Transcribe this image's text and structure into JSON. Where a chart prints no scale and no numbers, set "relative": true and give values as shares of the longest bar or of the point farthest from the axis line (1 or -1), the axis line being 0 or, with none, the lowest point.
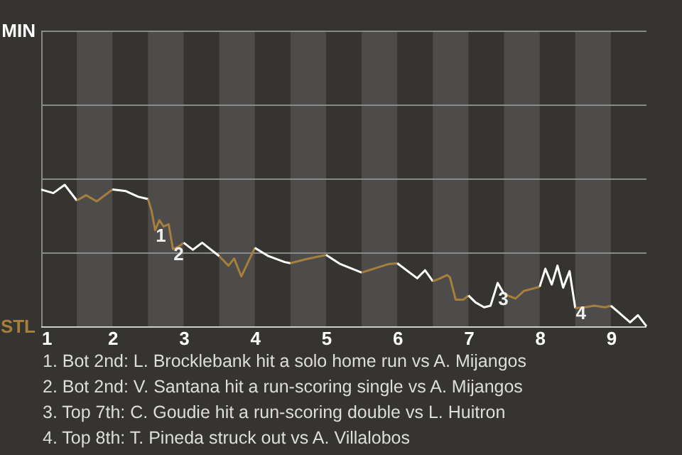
{
  "chart_data": {
    "type": "line",
    "relative": true,
    "series": [
      {
        "color": "#ffffff",
        "x": [
          1.0,
          1.17,
          1.33,
          1.5
        ],
        "values": [
          0.967,
          0.942,
          1,
          0.89
        ]
      },
      {
        "color": "#a67f3c",
        "x": [
          1.5,
          1.63,
          1.78,
          2.0
        ],
        "values": [
          0.89,
          0.927,
          0.884,
          0.967
        ]
      },
      {
        "color": "#ffffff",
        "x": [
          2.0,
          2.19,
          2.36,
          2.5
        ],
        "values": [
          0.967,
          0.956,
          0.917,
          0.9
        ]
      },
      {
        "color": "#a67f3c",
        "x": [
          2.5,
          2.55,
          2.6,
          2.66,
          2.72,
          2.79,
          2.85,
          2.93,
          3.0
        ],
        "values": [
          0.9,
          0.817,
          0.682,
          0.751,
          0.707,
          0.723,
          0.549,
          0.565,
          0.593
        ]
      },
      {
        "color": "#ffffff",
        "x": [
          3.0,
          3.13,
          3.26,
          3.5
        ],
        "values": [
          0.593,
          0.543,
          0.593,
          0.499
        ]
      },
      {
        "color": "#a67f3c",
        "x": [
          3.5,
          3.63,
          3.71,
          3.81,
          4.0
        ],
        "values": [
          0.499,
          0.432,
          0.482,
          0.356,
          0.557
        ]
      },
      {
        "color": "#ffffff",
        "x": [
          4.0,
          4.19,
          4.42,
          4.5
        ],
        "values": [
          0.557,
          0.499,
          0.457,
          0.449
        ]
      },
      {
        "color": "#a67f3c",
        "x": [
          4.5,
          4.71,
          5.0
        ],
        "values": [
          0.449,
          0.476,
          0.507
        ]
      },
      {
        "color": "#ffffff",
        "x": [
          5.0,
          5.2,
          5.5
        ],
        "values": [
          0.507,
          0.443,
          0.383
        ]
      },
      {
        "color": "#a67f3c",
        "x": [
          5.5,
          5.88,
          6.0
        ],
        "values": [
          0.383,
          0.443,
          0.449
        ]
      },
      {
        "color": "#ffffff",
        "x": [
          6.0,
          6.28,
          6.39,
          6.5
        ],
        "values": [
          0.449,
          0.343,
          0.399,
          0.322
        ]
      },
      {
        "color": "#a67f3c",
        "x": [
          6.5,
          6.59,
          6.7,
          6.74,
          6.82,
          6.93,
          7.0
        ],
        "values": [
          0.322,
          0.339,
          0.366,
          0.349,
          0.193,
          0.193,
          0.222
        ]
      },
      {
        "color": "#ffffff",
        "x": [
          7.0,
          7.1,
          7.22,
          7.31,
          7.41,
          7.5
        ],
        "values": [
          0.222,
          0.173,
          0.139,
          0.15,
          0.31,
          0.233
        ]
      },
      {
        "color": "#a67f3c",
        "x": [
          7.5,
          7.66,
          7.78,
          8.0
        ],
        "values": [
          0.233,
          0.2,
          0.254,
          0.283
        ]
      },
      {
        "color": "#ffffff",
        "x": [
          8.0,
          8.08,
          8.17,
          8.25,
          8.33,
          8.42,
          8.5
        ],
        "values": [
          0.283,
          0.41,
          0.299,
          0.432,
          0.277,
          0.393,
          0.133
        ]
      },
      {
        "color": "#a67f3c",
        "x": [
          8.5,
          8.63,
          8.77,
          8.92,
          9.0
        ],
        "values": [
          0.133,
          0.139,
          0.15,
          0.139,
          0.15
        ]
      },
      {
        "color": "#ffffff",
        "x": [
          9.0,
          9.13,
          9.27,
          9.38,
          9.5
        ],
        "values": [
          0.15,
          0.094,
          0.033,
          0.083,
          0.006
        ]
      }
    ],
    "xlim": [
      1,
      9.5
    ],
    "xticks": [
      1,
      2,
      3,
      4,
      5,
      6,
      7,
      8,
      9
    ],
    "ref_lines": [
      {
        "axis": "y",
        "value": 0,
        "label": "STL",
        "color": "#cccccc"
      },
      {
        "axis": "y",
        "value": 0.52,
        "color": "#8a8a8a"
      },
      {
        "axis": "y",
        "value": 1.04,
        "color": "#8a8a8a"
      },
      {
        "axis": "y",
        "value": 1.56,
        "color": "#8a8a8a"
      },
      {
        "axis": "y",
        "value": 2.08,
        "label": "MIN",
        "color": "#8a8a8a"
      }
    ],
    "bands": [
      {
        "axis": "x",
        "from": 1.5,
        "to": 2,
        "color": "#4e4c4a"
      },
      {
        "axis": "x",
        "from": 2.5,
        "to": 3,
        "color": "#4e4c4a"
      },
      {
        "axis": "x",
        "from": 3.5,
        "to": 4,
        "color": "#4e4c4a"
      },
      {
        "axis": "x",
        "from": 4.5,
        "to": 5,
        "color": "#4e4c4a"
      },
      {
        "axis": "x",
        "from": 5.5,
        "to": 6,
        "color": "#4e4c4a"
      },
      {
        "axis": "x",
        "from": 6.5,
        "to": 7,
        "color": "#4e4c4a"
      },
      {
        "axis": "x",
        "from": 7.5,
        "to": 8,
        "color": "#4e4c4a"
      },
      {
        "axis": "x",
        "from": 8.5,
        "to": 9,
        "color": "#4e4c4a"
      }
    ],
    "annotations": [
      {
        "text": "1",
        "x": 2.6,
        "y": 0.682
      },
      {
        "text": "2",
        "x": 2.85,
        "y": 0.549
      },
      {
        "text": "3",
        "x": 7.41,
        "y": 0.233
      },
      {
        "text": "4",
        "x": 8.5,
        "y": 0.133
      },
      "1. Bot 2nd: L. Brocklebank hit a solo home run vs A. Mijangos",
      "2. Bot 2nd: V. Santana hit a run-scoring single vs A. Mijangos",
      "3. Top 7th: C. Goudie hit a run-scoring double vs L. Huitron",
      "4. Top 8th: T. Pineda struck out vs A. Villalobos"
    ]
  }
}
